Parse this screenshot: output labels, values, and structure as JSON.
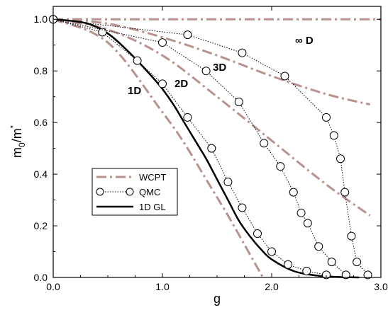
{
  "chart_data": {
    "type": "line",
    "title": "",
    "xlabel": "g",
    "ylabel_main": "m",
    "ylabel_sub": "0",
    "ylabel_mid": "/m",
    "ylabel_sup": "*",
    "xlim": [
      0,
      3
    ],
    "ylim": [
      0,
      1.05
    ],
    "xticks": [
      0,
      1,
      2,
      3
    ],
    "xtick_labels": [
      "0.0",
      "1.0",
      "2.0",
      "3.0"
    ],
    "yticks": [
      0,
      0.2,
      0.4,
      0.6,
      0.8,
      1.0
    ],
    "ytick_labels": [
      "0.0",
      "0.2",
      "0.4",
      "0.6",
      "0.8",
      "1.0"
    ],
    "grid": false,
    "legend_position": "lower-left",
    "legend": [
      {
        "label": "WCPT",
        "style": "dash-dot",
        "color": "#b8928f"
      },
      {
        "label": "QMC",
        "style": "dotted-with-circles",
        "color": "#000000"
      },
      {
        "label": "1D GL",
        "style": "solid",
        "color": "#000000"
      }
    ],
    "curve_labels": [
      "1D",
      "2D",
      "3D",
      "∞ D"
    ],
    "series": [
      {
        "name": "WCPT",
        "dimension": "∞ D",
        "x": [
          0,
          3.0
        ],
        "y": [
          1.0,
          1.0
        ]
      },
      {
        "name": "WCPT",
        "dimension": "3D",
        "x": [
          0,
          0.5,
          1.0,
          1.5,
          2.0,
          2.5,
          2.9
        ],
        "y": [
          1.0,
          0.983,
          0.93,
          0.86,
          0.78,
          0.71,
          0.67
        ]
      },
      {
        "name": "WCPT",
        "dimension": "2D",
        "x": [
          0,
          0.5,
          1.0,
          1.5,
          2.0,
          2.5,
          2.9
        ],
        "y": [
          1.0,
          0.96,
          0.86,
          0.7,
          0.53,
          0.36,
          0.24
        ]
      },
      {
        "name": "WCPT",
        "dimension": "1D",
        "x": [
          0,
          0.5,
          1.0,
          1.2,
          1.4,
          1.6,
          1.8,
          1.92
        ],
        "y": [
          1.0,
          0.91,
          0.64,
          0.52,
          0.38,
          0.24,
          0.09,
          0.0
        ]
      },
      {
        "name": "1D GL",
        "x": [
          0,
          0.3,
          0.5,
          0.7,
          0.9,
          1.0,
          1.1,
          1.2,
          1.3,
          1.4,
          1.5,
          1.6,
          1.7,
          1.8,
          1.9,
          2.0,
          2.2,
          2.4,
          2.6,
          2.8
        ],
        "y": [
          1.0,
          0.985,
          0.945,
          0.87,
          0.78,
          0.73,
          0.67,
          0.6,
          0.53,
          0.46,
          0.38,
          0.3,
          0.22,
          0.16,
          0.11,
          0.07,
          0.025,
          0.008,
          0.002,
          0.0
        ]
      },
      {
        "name": "QMC",
        "dimension": "1D",
        "x": [
          0,
          0.45,
          0.77,
          1.0,
          1.23,
          1.45,
          1.6,
          1.73,
          1.87,
          2.0,
          2.15,
          2.32,
          2.5
        ],
        "y": [
          1.0,
          0.95,
          0.84,
          0.75,
          0.62,
          0.5,
          0.37,
          0.27,
          0.17,
          0.1,
          0.05,
          0.025,
          0.01
        ]
      },
      {
        "name": "QMC",
        "dimension": "2D",
        "x": [
          0,
          1.0,
          1.4,
          1.7,
          1.93,
          2.08,
          2.2,
          2.27,
          2.33,
          2.43,
          2.55,
          2.68
        ],
        "y": [
          1.0,
          0.91,
          0.8,
          0.68,
          0.52,
          0.43,
          0.33,
          0.25,
          0.21,
          0.12,
          0.06,
          0.01
        ]
      },
      {
        "name": "QMC",
        "dimension": "3D",
        "x": [
          0,
          1.23,
          1.73,
          2.12,
          2.5,
          2.57,
          2.63,
          2.67,
          2.73,
          2.78,
          2.88
        ],
        "y": [
          1.0,
          0.94,
          0.87,
          0.78,
          0.62,
          0.55,
          0.46,
          0.33,
          0.16,
          0.06,
          0.01
        ]
      }
    ]
  }
}
